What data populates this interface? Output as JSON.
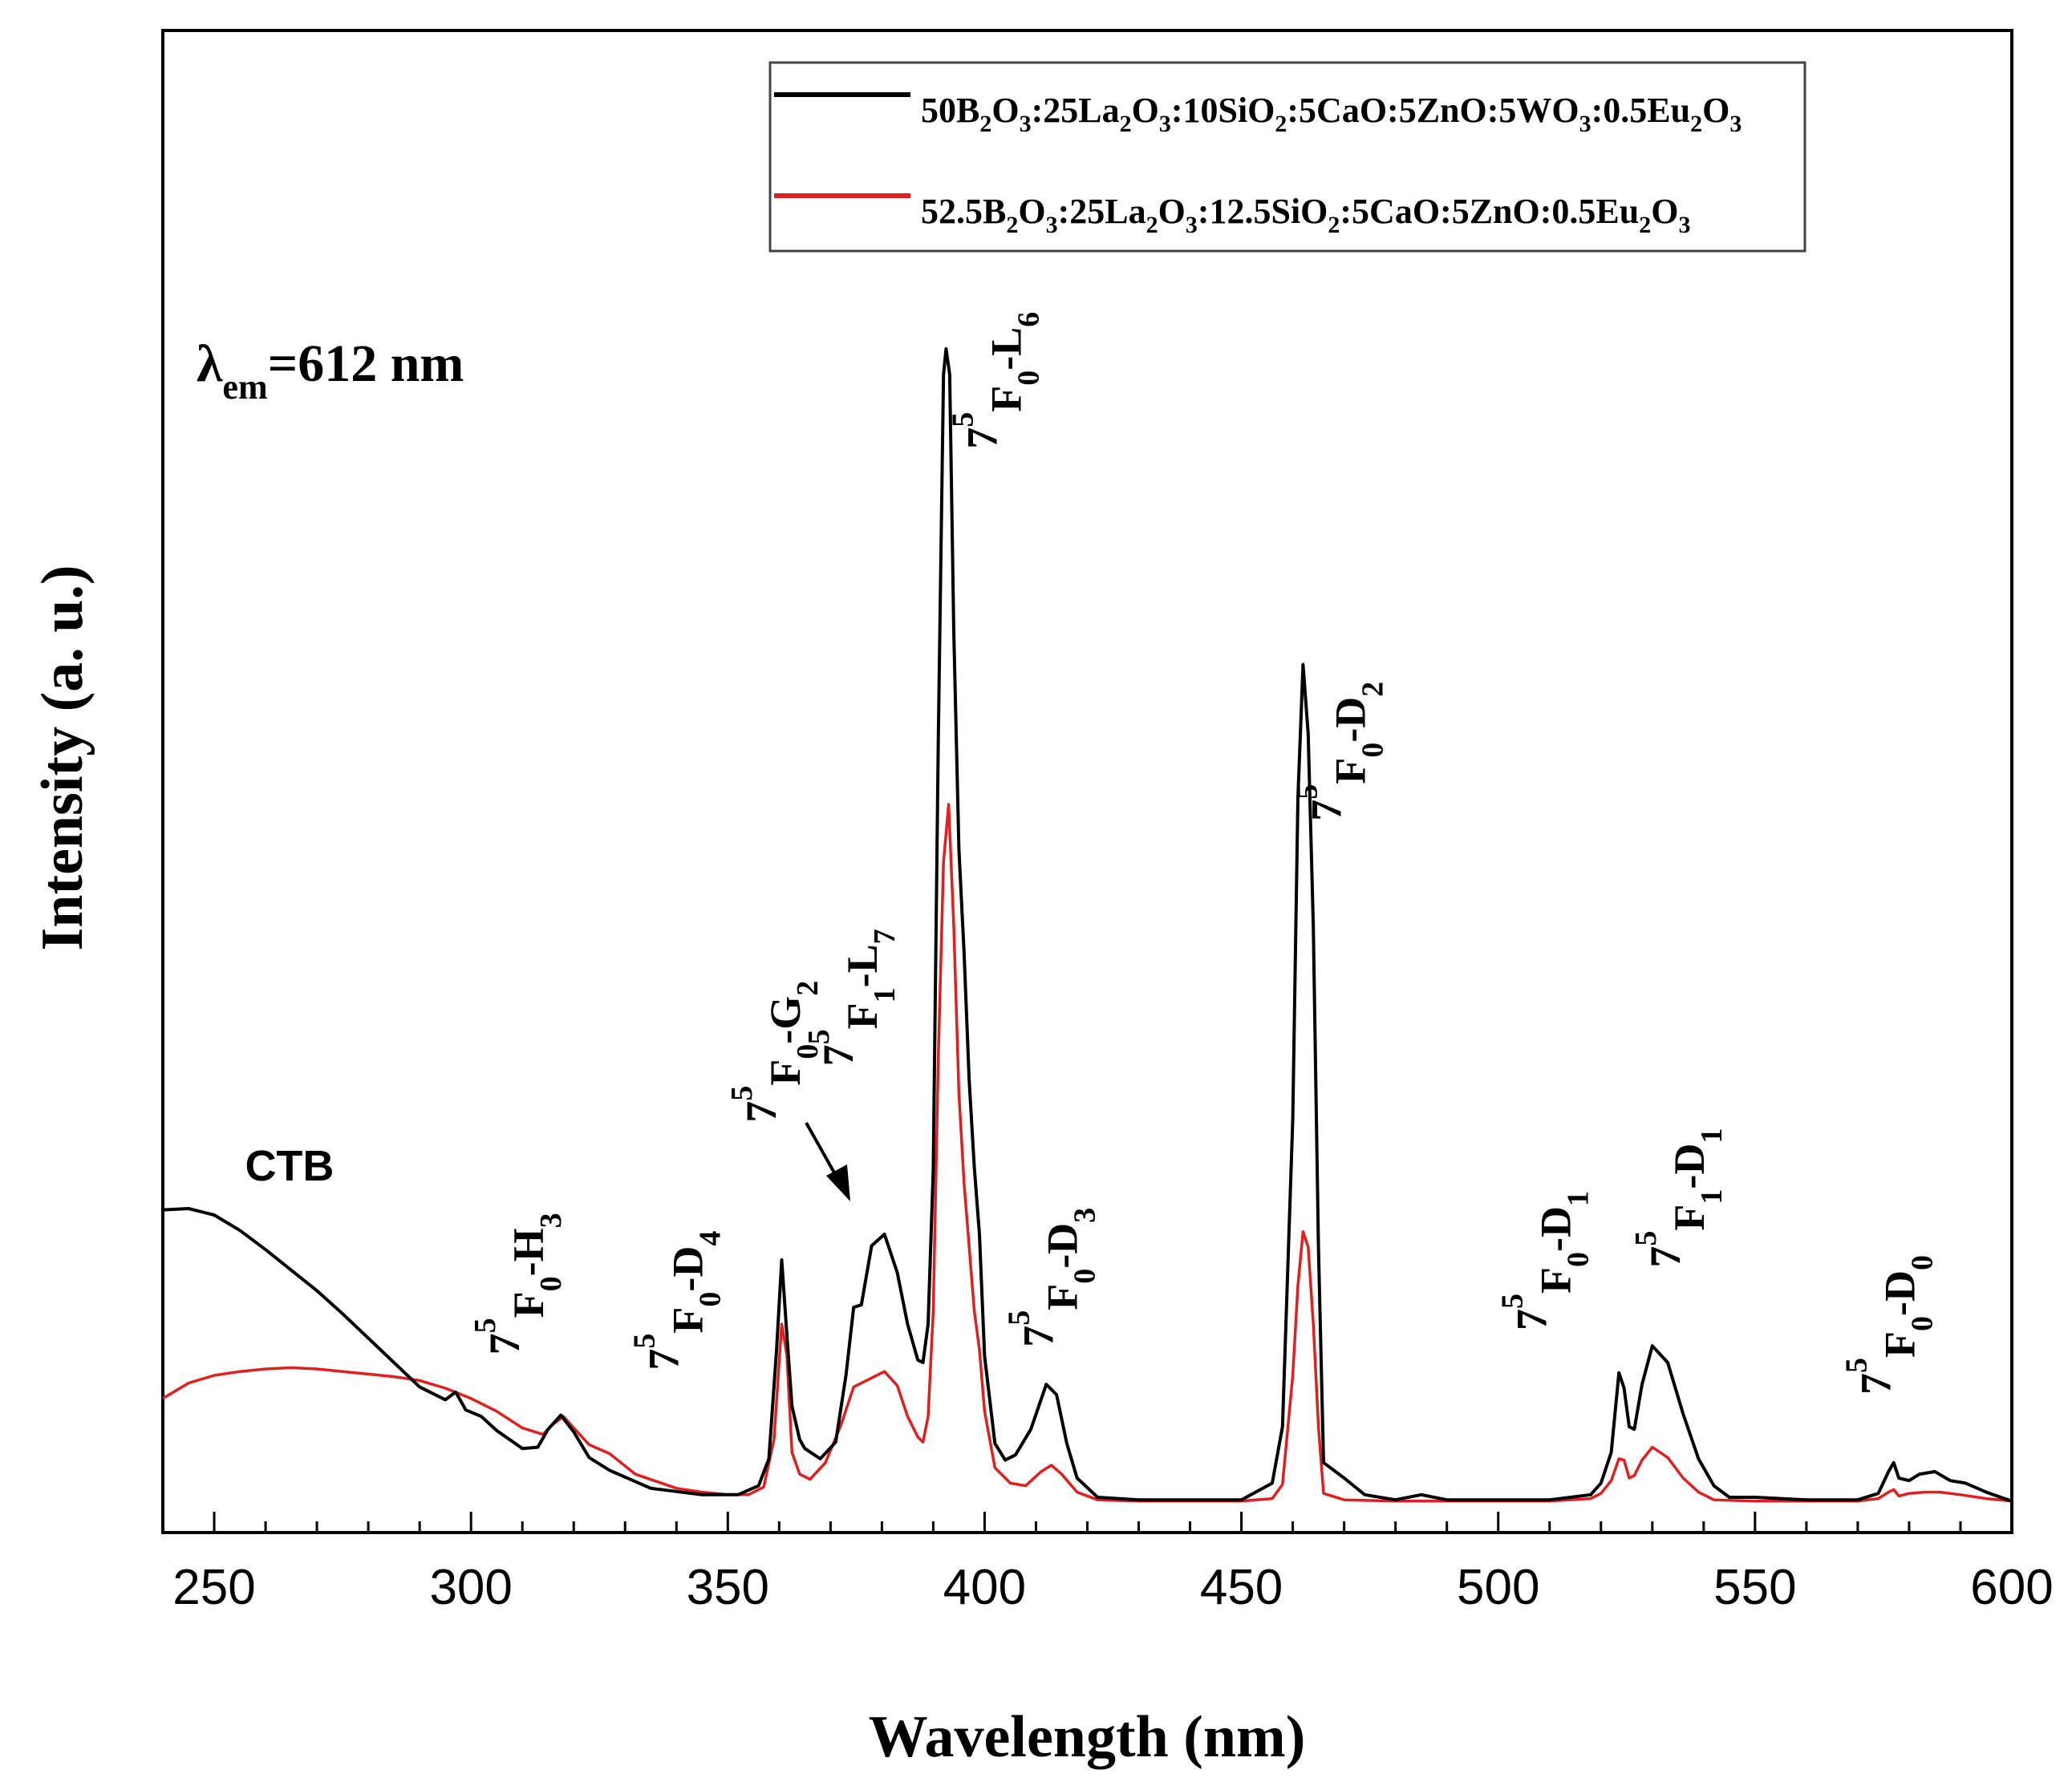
{
  "chart_data": {
    "type": "line",
    "title": "",
    "xlabel": "Wavelength (nm)",
    "ylabel": "Intensity (a. u.)",
    "xlim": [
      240,
      600
    ],
    "ylim": [
      0,
      100
    ],
    "xticks": [
      250,
      300,
      350,
      400,
      450,
      500,
      550,
      600
    ],
    "xtick_labels": [
      "250",
      "300",
      "350",
      "400",
      "450",
      "500",
      "550",
      "600"
    ],
    "y_ticks_shown": false,
    "excitation_label": {
      "symbol": "λ",
      "subscript": "em",
      "text": "=612 nm"
    },
    "legend": {
      "position": "top-right",
      "entries": [
        {
          "color": "#000000",
          "parts": [
            [
              "50B",
              ""
            ],
            [
              "2",
              "sub"
            ],
            [
              "O",
              ""
            ],
            [
              "3",
              "sub"
            ],
            [
              ":25La",
              ""
            ],
            [
              "2",
              "sub"
            ],
            [
              "O",
              ""
            ],
            [
              "3",
              "sub"
            ],
            [
              ":10SiO",
              ""
            ],
            [
              "2",
              "sub"
            ],
            [
              ":5CaO:5ZnO:5WO",
              ""
            ],
            [
              "3",
              "sub"
            ],
            [
              ":0.5Eu",
              ""
            ],
            [
              "2",
              "sub"
            ],
            [
              "O",
              ""
            ],
            [
              "3",
              "sub"
            ]
          ]
        },
        {
          "color": "#e02020",
          "parts": [
            [
              "52.5B",
              ""
            ],
            [
              "2",
              "sub"
            ],
            [
              "O",
              ""
            ],
            [
              "3",
              "sub"
            ],
            [
              ":25La",
              ""
            ],
            [
              "2",
              "sub"
            ],
            [
              "O",
              ""
            ],
            [
              "3",
              "sub"
            ],
            [
              ":12.5SiO",
              ""
            ],
            [
              "2",
              "sub"
            ],
            [
              ":5CaO:5ZnO:0.5Eu",
              ""
            ],
            [
              "2",
              "sub"
            ],
            [
              "O",
              ""
            ],
            [
              "3",
              "sub"
            ]
          ]
        }
      ]
    },
    "series": [
      {
        "name": "50B2O3:25La2O3:10SiO2:5CaO:5ZnO:5WO3:0.5Eu2O3",
        "color": "#000000",
        "points": [
          [
            240,
            22.9
          ],
          [
            245,
            23.0
          ],
          [
            250,
            22.5
          ],
          [
            255,
            21.3
          ],
          [
            260,
            19.8
          ],
          [
            265,
            18.2
          ],
          [
            270,
            16.6
          ],
          [
            275,
            14.8
          ],
          [
            280,
            12.9
          ],
          [
            285,
            11.0
          ],
          [
            290,
            9.1
          ],
          [
            295,
            8.1
          ],
          [
            297,
            8.7
          ],
          [
            299,
            7.3
          ],
          [
            302,
            6.8
          ],
          [
            305,
            5.7
          ],
          [
            310,
            4.3
          ],
          [
            313,
            4.4
          ],
          [
            315,
            5.8
          ],
          [
            317.5,
            6.9
          ],
          [
            320,
            5.6
          ],
          [
            323,
            3.6
          ],
          [
            327,
            2.6
          ],
          [
            335,
            1.2
          ],
          [
            345,
            0.7
          ],
          [
            352,
            0.7
          ],
          [
            356,
            1.4
          ],
          [
            358,
            3.5
          ],
          [
            359.5,
            12.0
          ],
          [
            360.5,
            19.0
          ],
          [
            361.5,
            13.2
          ],
          [
            362.5,
            7.6
          ],
          [
            364,
            5.0
          ],
          [
            365,
            4.3
          ],
          [
            368,
            3.5
          ],
          [
            371,
            4.8
          ],
          [
            373,
            10.0
          ],
          [
            374.5,
            15.3
          ],
          [
            376,
            15.5
          ],
          [
            378,
            20.1
          ],
          [
            380.5,
            21.0
          ],
          [
            383,
            18.0
          ],
          [
            385,
            14.0
          ],
          [
            387,
            11.2
          ],
          [
            388,
            11.0
          ],
          [
            389,
            14.0
          ],
          [
            390,
            26.0
          ],
          [
            391,
            60.0
          ],
          [
            392,
            88.0
          ],
          [
            392.5,
            90.0
          ],
          [
            393.2,
            88.0
          ],
          [
            394,
            68.0
          ],
          [
            395,
            51.0
          ],
          [
            396,
            43.0
          ],
          [
            397,
            33.0
          ],
          [
            398,
            26.2
          ],
          [
            399,
            21.0
          ],
          [
            400,
            11.5
          ],
          [
            402,
            4.7
          ],
          [
            404,
            3.4
          ],
          [
            406,
            3.8
          ],
          [
            409,
            5.8
          ],
          [
            412,
            9.3
          ],
          [
            414,
            8.5
          ],
          [
            416,
            4.7
          ],
          [
            418,
            2.0
          ],
          [
            422,
            0.5
          ],
          [
            430,
            0.3
          ],
          [
            440,
            0.3
          ],
          [
            450,
            0.3
          ],
          [
            456,
            1.6
          ],
          [
            458,
            6.0
          ],
          [
            460,
            30.0
          ],
          [
            461,
            55.0
          ],
          [
            462,
            65.4
          ],
          [
            463,
            60.0
          ],
          [
            464,
            45.0
          ],
          [
            465,
            20.0
          ],
          [
            466,
            3.2
          ],
          [
            470,
            2.0
          ],
          [
            474,
            0.7
          ],
          [
            480,
            0.3
          ],
          [
            485,
            0.7
          ],
          [
            490,
            0.3
          ],
          [
            500,
            0.3
          ],
          [
            510,
            0.3
          ],
          [
            518,
            0.7
          ],
          [
            520,
            1.6
          ],
          [
            522,
            4.0
          ],
          [
            523.5,
            10.2
          ],
          [
            524.5,
            9.0
          ],
          [
            525.5,
            6.0
          ],
          [
            526.5,
            5.8
          ],
          [
            528,
            9.3
          ],
          [
            530,
            12.3
          ],
          [
            533,
            11.0
          ],
          [
            536,
            7.0
          ],
          [
            539,
            3.5
          ],
          [
            542,
            1.4
          ],
          [
            545,
            0.5
          ],
          [
            550,
            0.5
          ],
          [
            560,
            0.3
          ],
          [
            570,
            0.3
          ],
          [
            574,
            0.8
          ],
          [
            576,
            2.5
          ],
          [
            577,
            3.2
          ],
          [
            578,
            2.0
          ],
          [
            580,
            1.8
          ],
          [
            582,
            2.3
          ],
          [
            585,
            2.5
          ],
          [
            588,
            1.8
          ],
          [
            591,
            1.6
          ],
          [
            595,
            0.9
          ],
          [
            600,
            0.2
          ]
        ]
      },
      {
        "name": "52.5B2O3:25La2O3:12.5SiO2:5CaO:5ZnO:0.5Eu2O3",
        "color": "#e02020",
        "points": [
          [
            240,
            8.2
          ],
          [
            245,
            9.4
          ],
          [
            250,
            10.0
          ],
          [
            255,
            10.3
          ],
          [
            260,
            10.5
          ],
          [
            265,
            10.6
          ],
          [
            270,
            10.5
          ],
          [
            275,
            10.3
          ],
          [
            280,
            10.1
          ],
          [
            285,
            9.9
          ],
          [
            290,
            9.6
          ],
          [
            295,
            9.0
          ],
          [
            300,
            8.2
          ],
          [
            305,
            7.2
          ],
          [
            310,
            5.9
          ],
          [
            314,
            5.4
          ],
          [
            316,
            6.2
          ],
          [
            318,
            6.8
          ],
          [
            320,
            5.9
          ],
          [
            323,
            4.6
          ],
          [
            327,
            3.9
          ],
          [
            332,
            2.3
          ],
          [
            340,
            1.2
          ],
          [
            345,
            0.9
          ],
          [
            350,
            0.7
          ],
          [
            354,
            0.7
          ],
          [
            357,
            1.3
          ],
          [
            359,
            5.0
          ],
          [
            360.5,
            14.0
          ],
          [
            361.5,
            11.6
          ],
          [
            362.5,
            4.0
          ],
          [
            364,
            2.3
          ],
          [
            366,
            1.9
          ],
          [
            369,
            3.2
          ],
          [
            372,
            6.1
          ],
          [
            374.5,
            9.1
          ],
          [
            378,
            9.8
          ],
          [
            380.5,
            10.3
          ],
          [
            383,
            9.2
          ],
          [
            385,
            6.8
          ],
          [
            387,
            5.2
          ],
          [
            388,
            4.8
          ],
          [
            389,
            6.8
          ],
          [
            390,
            15.0
          ],
          [
            391,
            35.0
          ],
          [
            392,
            50.0
          ],
          [
            393,
            54.5
          ],
          [
            394,
            45.0
          ],
          [
            395,
            32.0
          ],
          [
            396,
            25.0
          ],
          [
            397,
            20.0
          ],
          [
            398,
            15.0
          ],
          [
            399,
            12.0
          ],
          [
            400,
            7.2
          ],
          [
            402,
            2.8
          ],
          [
            405,
            1.6
          ],
          [
            408,
            1.4
          ],
          [
            411,
            2.5
          ],
          [
            413,
            3.0
          ],
          [
            415,
            2.3
          ],
          [
            418,
            0.9
          ],
          [
            422,
            0.3
          ],
          [
            430,
            0.2
          ],
          [
            440,
            0.2
          ],
          [
            450,
            0.2
          ],
          [
            456,
            0.4
          ],
          [
            458,
            1.5
          ],
          [
            460,
            10.0
          ],
          [
            461,
            17.0
          ],
          [
            462,
            21.2
          ],
          [
            463,
            20.0
          ],
          [
            464,
            14.0
          ],
          [
            465,
            6.0
          ],
          [
            466,
            0.8
          ],
          [
            470,
            0.3
          ],
          [
            480,
            0.2
          ],
          [
            490,
            0.2
          ],
          [
            500,
            0.2
          ],
          [
            510,
            0.2
          ],
          [
            518,
            0.4
          ],
          [
            520,
            0.8
          ],
          [
            522,
            1.8
          ],
          [
            523.5,
            3.5
          ],
          [
            524.5,
            3.4
          ],
          [
            525.5,
            2.0
          ],
          [
            526.5,
            2.2
          ],
          [
            528,
            3.4
          ],
          [
            530,
            4.4
          ],
          [
            533,
            3.6
          ],
          [
            536,
            2.0
          ],
          [
            539,
            0.9
          ],
          [
            542,
            0.3
          ],
          [
            550,
            0.2
          ],
          [
            560,
            0.2
          ],
          [
            570,
            0.2
          ],
          [
            574,
            0.4
          ],
          [
            576,
            0.9
          ],
          [
            577,
            1.1
          ],
          [
            578,
            0.6
          ],
          [
            580,
            0.8
          ],
          [
            583,
            0.9
          ],
          [
            586,
            0.9
          ],
          [
            590,
            0.7
          ],
          [
            595,
            0.4
          ],
          [
            600,
            0.2
          ]
        ]
      }
    ],
    "annotations": [
      {
        "key": "ctb",
        "text": "CTB",
        "x": 256,
        "y": 25.2,
        "style": "sans"
      },
      {
        "key": "h3",
        "pre": "7",
        "sup": "5",
        "main1": "F",
        "sub1": "0",
        "dash": "-",
        "main2": "H",
        "sub2": "3",
        "x": 314,
        "y": 11.6
      },
      {
        "key": "d4",
        "pre": "7",
        "sup": "5",
        "main1": "F",
        "sub1": "0",
        "dash": "-",
        "main2": "D",
        "sub2": "4",
        "x": 345,
        "y": 10.4
      },
      {
        "key": "g2",
        "pre": "7",
        "sup": "5",
        "main1": "F",
        "sub1": "0",
        "dash": "-",
        "main2": "G",
        "sub2": "2",
        "x": 364,
        "y": 29.7
      },
      {
        "key": "l7",
        "pre": "7",
        "sup": "5",
        "main1": "F",
        "sub1": "1",
        "dash": "-",
        "main2": "L",
        "sub2": "7",
        "x": 379,
        "y": 34.1
      },
      {
        "key": "l6",
        "pre": "7",
        "sup": "5",
        "main1": "F",
        "sub1": "0",
        "dash": "-",
        "main2": "L",
        "sub2": "6",
        "x": 407,
        "y": 82.2
      },
      {
        "key": "d3",
        "pre": "7",
        "sup": "5",
        "main1": "F",
        "sub1": "0",
        "dash": "-",
        "main2": "D",
        "sub2": "3",
        "x": 418,
        "y": 12.2
      },
      {
        "key": "d2",
        "pre": "7",
        "sup": "5",
        "main1": "F",
        "sub1": "0",
        "dash": "-",
        "main2": "D",
        "sub2": "2",
        "x": 474,
        "y": 53.2
      },
      {
        "key": "d1a",
        "pre": "7",
        "sup": "5",
        "main1": "F",
        "sub1": "0",
        "dash": "-",
        "main2": "D",
        "sub2": "1",
        "x": 514,
        "y": 13.5
      },
      {
        "key": "d1b",
        "pre": "7",
        "sup": "5",
        "main1": "F",
        "sub1": "1",
        "dash": "-",
        "main2": "D",
        "sub2": "1",
        "x": 540,
        "y": 18.4
      },
      {
        "key": "d0",
        "pre": "7",
        "sup": "5",
        "main1": "F",
        "sub1": "0",
        "dash": "-",
        "main2": "D",
        "sub2": "0",
        "x": 581,
        "y": 8.5
      }
    ]
  }
}
